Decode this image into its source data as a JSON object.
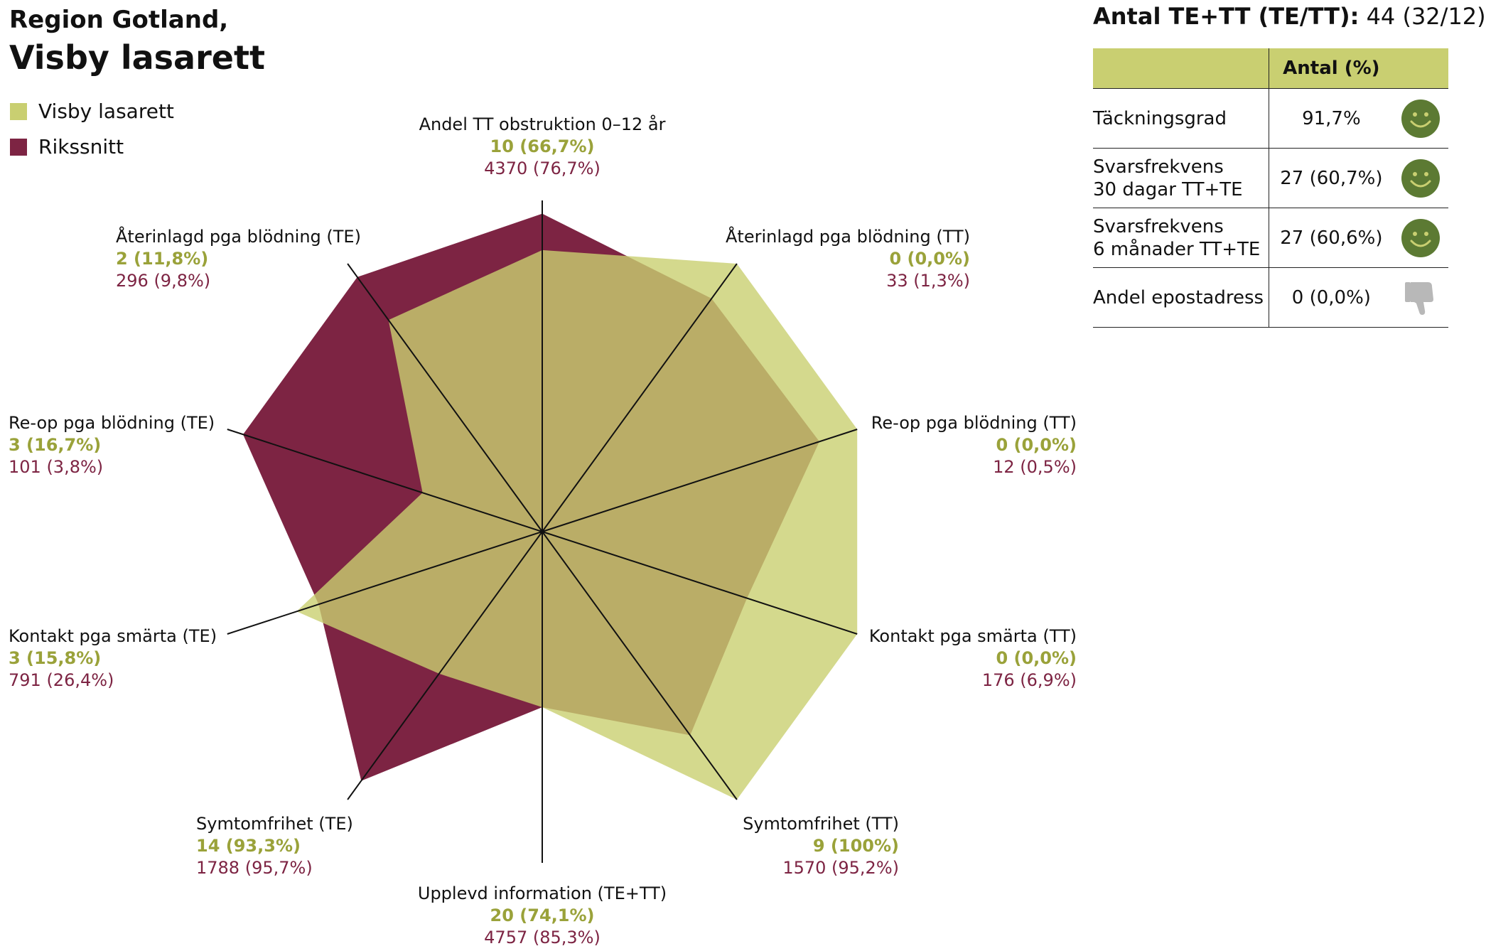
{
  "header": {
    "region": "Region Gotland,",
    "hospital": "Visby lasarett"
  },
  "legend": [
    {
      "label": "Visby lasarett",
      "color": "#c9cf71"
    },
    {
      "label": "Rikssnitt",
      "color": "#7d2443"
    }
  ],
  "summary": {
    "title_bold": "Antal TE+TT (TE/TT):",
    "title_value": "44 (32/12)",
    "column_header": "Antal (%)",
    "rows": [
      {
        "name_lines": [
          "Täckningsgrad"
        ],
        "value": "91,7%",
        "icon": "smiley-icon"
      },
      {
        "name_lines": [
          "Svarsfrekvens",
          "30 dagar TT+TE"
        ],
        "value": "27 (60,7%)",
        "icon": "smiley-icon"
      },
      {
        "name_lines": [
          "Svarsfrekvens",
          "6 månader TT+TE"
        ],
        "value": "27 (60,6%)",
        "icon": "smiley-icon"
      },
      {
        "name_lines": [
          "Andel epostadress"
        ],
        "value": "0 (0,0%)",
        "icon": "thumbs-down-icon"
      }
    ]
  },
  "chart_data": {
    "type": "radar",
    "axes": [
      {
        "label": "Andel TT obstruktion 0–12 år",
        "hospital_text": "10 (66,7%)",
        "riks_text": "4370 (76,7%)"
      },
      {
        "label": "Återinlagd pga blödning (TT)",
        "hospital_text": "0 (0,0%)",
        "riks_text": "33 (1,3%)"
      },
      {
        "label": "Re-op pga blödning (TT)",
        "hospital_text": "0 (0,0%)",
        "riks_text": "12 (0,5%)"
      },
      {
        "label": "Kontakt pga smärta (TT)",
        "hospital_text": "0 (0,0%)",
        "riks_text": "176 (6,9%)"
      },
      {
        "label": "Symtomfrihet (TT)",
        "hospital_text": "9 (100%)",
        "riks_text": "1570 (95,2%)"
      },
      {
        "label": "Upplevd information (TE+TT)",
        "hospital_text": "20 (74,1%)",
        "riks_text": "4757 (85,3%)"
      },
      {
        "label": "Symtomfrihet (TE)",
        "hospital_text": "14 (93,3%)",
        "riks_text": "1788 (95,7%)"
      },
      {
        "label": "Kontakt pga smärta (TE)",
        "hospital_text": "3 (15,8%)",
        "riks_text": "791 (26,4%)"
      },
      {
        "label": "Re-op pga blödning (TE)",
        "hospital_text": "3 (16,7%)",
        "riks_text": "101 (3,8%)"
      },
      {
        "label": "Återinlagd pga blödning (TE)",
        "hospital_text": "2 (11,8%)",
        "riks_text": "296 (9,8%)"
      }
    ],
    "series": [
      {
        "name": "Visby lasarett",
        "color": "#c9cf71",
        "values": [
          0.85,
          1.0,
          1.0,
          1.0,
          1.0,
          0.53,
          0.53,
          0.78,
          0.38,
          0.79
        ]
      },
      {
        "name": "Rikssnitt",
        "color": "#7d2443",
        "values": [
          0.96,
          0.87,
          0.88,
          0.65,
          0.76,
          0.53,
          0.93,
          0.71,
          0.95,
          0.95
        ]
      }
    ],
    "range": [
      0,
      1
    ]
  }
}
